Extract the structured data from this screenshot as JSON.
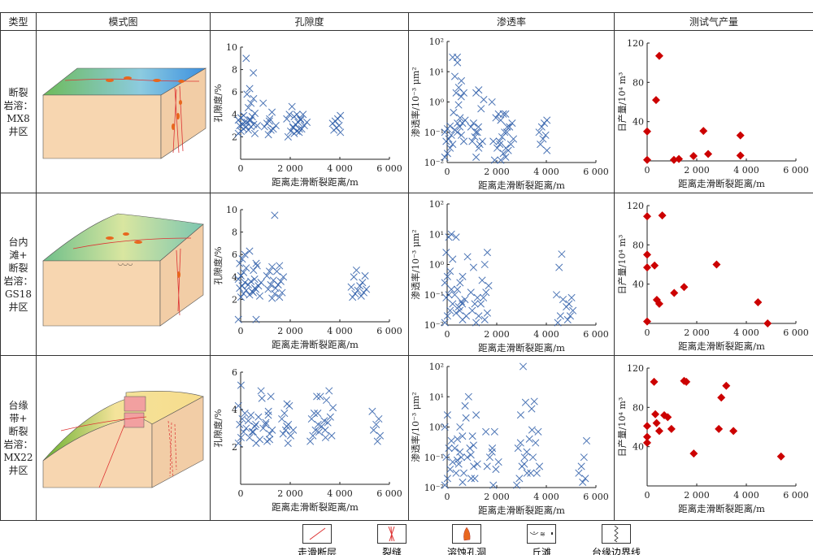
{
  "header": {
    "type": "类型",
    "model": "模式图",
    "porosity": "孔隙度",
    "permeability": "渗透率",
    "gas": "测试气产量"
  },
  "rows": [
    {
      "type_lines": [
        "断裂",
        "岩溶：",
        "MX8",
        "井区"
      ]
    },
    {
      "type_lines": [
        "台内",
        "滩+",
        "断裂",
        "岩溶：",
        "GS18",
        "井区"
      ]
    },
    {
      "type_lines": [
        "台缘",
        "带+",
        "断裂",
        "岩溶：",
        "MX22",
        "井区"
      ]
    }
  ],
  "legend": [
    {
      "label": "走滑断层",
      "icon": "strike-slip-fault-icon"
    },
    {
      "label": "裂缝",
      "icon": "fracture-icon"
    },
    {
      "label": "溶蚀孔洞",
      "icon": "dissolution-vug-icon"
    },
    {
      "label": "丘滩",
      "icon": "mound-shoal-icon"
    },
    {
      "label": "台缘边界线",
      "icon": "platform-margin-boundary-icon"
    }
  ],
  "colors": {
    "cross_marker": "#2b5ca8",
    "diamond_marker": "#cc0000",
    "block_face": "#f7d6b0"
  },
  "chart_data": [
    {
      "type": "scatter",
      "row": 0,
      "kind": "porosity",
      "xlabel": "距离走滑断裂距离/m",
      "ylabel": "孔隙度/%",
      "xlim": [
        0,
        6000
      ],
      "ylim": [
        0,
        10
      ],
      "xticks": [
        "0",
        "2 000",
        "4 000",
        "6 000"
      ],
      "yticks": [
        "2",
        "4",
        "6",
        "8",
        "10"
      ],
      "marker": "cross",
      "clusters": [
        {
          "x": 0,
          "y": [
            2.3,
            2.5,
            2.7,
            2.9,
            3.0,
            3.1,
            3.3,
            3.5,
            3.7,
            3.9,
            9.0
          ]
        },
        {
          "x": 350,
          "y": [
            2.3,
            2.6,
            2.9,
            3.1,
            3.3,
            3.5,
            3.8,
            4.1,
            4.6,
            5.0,
            5.4,
            5.8,
            6.3
          ]
        },
        {
          "x": 500,
          "y": [
            3.0,
            3.5,
            7.7
          ]
        },
        {
          "x": 1000,
          "y": [
            2.2,
            2.6,
            2.9,
            3.2,
            3.6,
            5.0
          ]
        },
        {
          "x": 1250,
          "y": [
            2.7,
            3.0,
            3.4,
            4.2
          ]
        },
        {
          "x": 1900,
          "y": [
            2.0,
            2.5,
            2.8,
            3.6,
            4.0,
            4.7
          ]
        },
        {
          "x": 2200,
          "y": [
            2.3,
            2.5,
            2.7,
            2.9,
            3.1,
            3.3,
            3.5,
            3.8,
            4.0
          ]
        },
        {
          "x": 2450,
          "y": [
            2.4,
            2.7,
            3.0,
            3.3,
            3.6,
            4.0
          ]
        },
        {
          "x": 3800,
          "y": [
            2.4,
            2.6,
            2.8,
            3.0,
            3.2,
            3.4,
            3.6,
            3.9
          ]
        }
      ]
    },
    {
      "type": "scatter",
      "row": 0,
      "kind": "permeability",
      "xlabel": "距离走滑断裂距离/m",
      "ylabel": "渗透率/10⁻³ μm²",
      "xlim": [
        0,
        6000
      ],
      "ylim": [
        0.01,
        100
      ],
      "yscale": "log",
      "xticks": [
        "0",
        "2 000",
        "4 000",
        "6 000"
      ],
      "yticks": [
        "10⁻²",
        "10⁻¹",
        "10⁰",
        "10¹",
        "10²"
      ],
      "marker": "cross",
      "clusters": [
        {
          "x": 0,
          "y": [
            0.015,
            0.02,
            0.03,
            0.04,
            0.05,
            0.06,
            0.08,
            0.1,
            0.13,
            0.16,
            30
          ]
        },
        {
          "x": 350,
          "y": [
            0.08,
            0.12,
            0.2,
            0.3,
            0.45,
            2,
            3,
            5,
            7,
            20
          ]
        },
        {
          "x": 500,
          "y": [
            0.05,
            0.1,
            0.15,
            0.2,
            0.25,
            0.8,
            1.5,
            2,
            30
          ]
        },
        {
          "x": 1050,
          "y": [
            0.015,
            0.03,
            0.05,
            0.07,
            0.1,
            0.15,
            0.2,
            2,
            2.5
          ]
        },
        {
          "x": 1250,
          "y": [
            0.04,
            0.05,
            0.1,
            0.15,
            0.6,
            1.2
          ]
        },
        {
          "x": 1900,
          "y": [
            0.012,
            0.03,
            0.04,
            0.05,
            0.3,
            0.4,
            1.0
          ]
        },
        {
          "x": 2200,
          "y": [
            0.012,
            0.02,
            0.03,
            0.05,
            0.07,
            0.1,
            0.15,
            0.25,
            0.4
          ]
        },
        {
          "x": 2450,
          "y": [
            0.015,
            0.025,
            0.04,
            0.06,
            0.1,
            0.15,
            0.2,
            0.4
          ]
        },
        {
          "x": 3800,
          "y": [
            0.025,
            0.04,
            0.06,
            0.08,
            0.1,
            0.15,
            0.2,
            0.25
          ]
        }
      ]
    },
    {
      "type": "scatter",
      "row": 0,
      "kind": "gas",
      "xlabel": "距离走滑断裂距离/m",
      "ylabel": "日产量/10⁴ m³",
      "xlim": [
        0,
        6000
      ],
      "ylim": [
        0,
        120
      ],
      "xticks": [
        "0",
        "2 000",
        "4 000",
        "6 000"
      ],
      "yticks": [
        "40",
        "80",
        "120"
      ],
      "marker": "diamond",
      "points": [
        [
          0,
          30
        ],
        [
          0,
          1
        ],
        [
          360,
          62
        ],
        [
          490,
          107
        ],
        [
          1080,
          1
        ],
        [
          1280,
          2
        ],
        [
          1870,
          5
        ],
        [
          2270,
          30.5
        ],
        [
          2460,
          7
        ],
        [
          3760,
          26
        ],
        [
          3760,
          5.5
        ]
      ]
    },
    {
      "type": "scatter",
      "row": 1,
      "kind": "porosity",
      "xlabel": "距离走滑断裂距离/m",
      "ylabel": "孔隙度/%",
      "xlim": [
        0,
        6000
      ],
      "ylim": [
        0,
        10
      ],
      "xticks": [
        "0",
        "2 000",
        "4 000",
        "6 000"
      ],
      "yticks": [
        "2",
        "4",
        "6",
        "8",
        "10"
      ],
      "marker": "cross",
      "clusters": [
        {
          "x": 0,
          "y": [
            0.2,
            2.2,
            2.5,
            2.8,
            3.0,
            3.2,
            3.5,
            3.8,
            4.1,
            4.4,
            4.8,
            5.2,
            5.6,
            6.0
          ]
        },
        {
          "x": 400,
          "y": [
            0.2,
            2.4,
            2.7,
            3.0,
            3.3,
            3.6,
            4.6,
            5.2,
            6.3
          ]
        },
        {
          "x": 600,
          "y": [
            2.3,
            2.6,
            2.9,
            3.2,
            3.5,
            3.8,
            5.0
          ]
        },
        {
          "x": 1150,
          "y": [
            2.1,
            2.5,
            2.9,
            3.3,
            3.7,
            4.1,
            4.5,
            4.9,
            9.5
          ]
        },
        {
          "x": 1500,
          "y": [
            2.2,
            2.6,
            3.0,
            3.3,
            3.6,
            4.0,
            4.5,
            5.0
          ]
        },
        {
          "x": 4500,
          "y": [
            2.2,
            2.5,
            2.8,
            3.1,
            4.0,
            4.6
          ]
        },
        {
          "x": 4900,
          "y": [
            2.3,
            2.6,
            2.9,
            3.2,
            3.5,
            4.1
          ]
        }
      ]
    },
    {
      "type": "scatter",
      "row": 1,
      "kind": "permeability",
      "xlabel": "距离走滑断裂距离/m",
      "ylabel": "渗透率/10⁻³ μm²",
      "xlim": [
        0,
        6000
      ],
      "ylim": [
        0.01,
        100
      ],
      "yscale": "log",
      "xticks": [
        "0",
        "2 000",
        "4 000",
        "6 000"
      ],
      "yticks": [
        "10⁻²",
        "10⁻¹",
        "10⁰",
        "10¹",
        "10²"
      ],
      "marker": "cross",
      "clusters": [
        {
          "x": 0,
          "y": [
            0.012,
            0.02,
            0.03,
            0.05,
            0.08,
            0.1,
            0.15,
            0.25,
            0.4,
            0.6,
            1.5,
            2.5,
            8,
            10
          ]
        },
        {
          "x": 400,
          "y": [
            0.015,
            0.025,
            0.04,
            0.06,
            0.1,
            0.15,
            0.25,
            0.4,
            8
          ]
        },
        {
          "x": 600,
          "y": [
            0.02,
            0.03,
            0.05,
            0.07,
            1.8
          ]
        },
        {
          "x": 1050,
          "y": [
            0.012,
            0.02,
            0.03,
            0.05,
            0.08,
            0.12,
            0.8
          ]
        },
        {
          "x": 1450,
          "y": [
            0.015,
            0.025,
            0.05,
            0.08,
            0.12,
            0.2,
            0.3,
            1.0,
            2.5
          ]
        },
        {
          "x": 4450,
          "y": [
            0.012,
            0.02,
            0.07,
            0.1,
            0.8,
            2.2
          ]
        },
        {
          "x": 4900,
          "y": [
            0.015,
            0.02,
            0.03,
            0.04,
            0.05,
            0.08
          ]
        }
      ]
    },
    {
      "type": "scatter",
      "row": 1,
      "kind": "gas",
      "xlabel": "距离走滑断裂距离/m",
      "ylabel": "日产量/10⁴ m³",
      "xlim": [
        0,
        6000
      ],
      "ylim": [
        0,
        120
      ],
      "xticks": [
        "0",
        "2 000",
        "4 000",
        "6 000"
      ],
      "yticks": [
        "40",
        "80",
        "120"
      ],
      "marker": "diamond",
      "points": [
        [
          0,
          109
        ],
        [
          610,
          110
        ],
        [
          0,
          70
        ],
        [
          0,
          57
        ],
        [
          300,
          59
        ],
        [
          0,
          2
        ],
        [
          390,
          24
        ],
        [
          490,
          20
        ],
        [
          1090,
          31
        ],
        [
          1490,
          37
        ],
        [
          2800,
          60
        ],
        [
          4470,
          21.5
        ],
        [
          4860,
          0
        ]
      ]
    },
    {
      "type": "scatter",
      "row": 2,
      "kind": "porosity",
      "xlabel": "距离走滑断裂距离/m",
      "ylabel": "孔隙度/%",
      "xlim": [
        0,
        6000
      ],
      "ylim": [
        0,
        6
      ],
      "xticks": [
        "0",
        "2 000",
        "4 000",
        "6 000"
      ],
      "yticks": [
        "2",
        "4",
        "6"
      ],
      "marker": "cross",
      "clusters": [
        {
          "x": 0,
          "y": [
            2.2,
            2.5,
            2.8,
            3.0,
            3.2,
            3.5,
            3.8,
            4.2,
            5.3
          ]
        },
        {
          "x": 400,
          "y": [
            2.2,
            2.5,
            2.8,
            3.1,
            3.4,
            3.7
          ]
        },
        {
          "x": 600,
          "y": [
            2.4,
            2.8,
            3.2,
            3.6,
            5.0
          ]
        },
        {
          "x": 950,
          "y": [
            2.3,
            2.7,
            3.0,
            3.3,
            3.9,
            4.6
          ]
        },
        {
          "x": 1100,
          "y": [
            2.4,
            2.9,
            3.2,
            3.7,
            4.7
          ]
        },
        {
          "x": 1700,
          "y": [
            2.7,
            2.9,
            3.2,
            3.5,
            3.8,
            4.3
          ]
        },
        {
          "x": 1950,
          "y": [
            2.2,
            2.6,
            2.9,
            3.1,
            4.2
          ]
        },
        {
          "x": 2900,
          "y": [
            2.3,
            2.6,
            2.9,
            3.2,
            3.5,
            3.8,
            4.7
          ]
        },
        {
          "x": 3200,
          "y": [
            2.5,
            2.8,
            3.1,
            3.4,
            3.8,
            4.7
          ]
        },
        {
          "x": 3500,
          "y": [
            2.6,
            2.9,
            3.3,
            3.6,
            4.1,
            4.5,
            5.0
          ]
        },
        {
          "x": 5400,
          "y": [
            2.3,
            2.6,
            2.9,
            3.2,
            3.5,
            3.9
          ]
        }
      ]
    },
    {
      "type": "scatter",
      "row": 2,
      "kind": "permeability",
      "xlabel": "距离走滑断裂距离/m",
      "ylabel": "渗透率/10⁻³ μm²",
      "xlim": [
        0,
        6000
      ],
      "ylim": [
        0.01,
        100
      ],
      "yscale": "log",
      "xticks": [
        "0",
        "2 000",
        "4 000",
        "6 000"
      ],
      "yticks": [
        "10⁻²",
        "10⁻¹",
        "10⁰",
        "10¹",
        "10²"
      ],
      "marker": "cross",
      "clusters": [
        {
          "x": 0,
          "y": [
            0.012,
            0.02,
            0.04,
            0.07,
            0.1,
            0.2,
            0.35,
            1,
            2.5
          ]
        },
        {
          "x": 400,
          "y": [
            0.015,
            0.03,
            0.06,
            0.1,
            0.2,
            0.4,
            1.0
          ]
        },
        {
          "x": 500,
          "y": [
            0.03,
            0.08,
            0.15,
            0.5,
            5
          ]
        },
        {
          "x": 850,
          "y": [
            0.02,
            0.05,
            0.1,
            0.2,
            0.5,
            2,
            10
          ]
        },
        {
          "x": 1050,
          "y": [
            0.02,
            0.06,
            0.12,
            0.25,
            2.5
          ]
        },
        {
          "x": 1600,
          "y": [
            0.05,
            0.1,
            0.2,
            0.7
          ]
        },
        {
          "x": 1900,
          "y": [
            0.012,
            0.04,
            0.07,
            0.15,
            0.7
          ]
        },
        {
          "x": 2900,
          "y": [
            0.012,
            0.02,
            0.05,
            0.1,
            0.2,
            2.5
          ]
        },
        {
          "x": 3000,
          "y": [
            0.03,
            0.3,
            100
          ]
        },
        {
          "x": 3200,
          "y": [
            0.03,
            0.06,
            0.15,
            0.4,
            0.8,
            6.5
          ]
        },
        {
          "x": 3500,
          "y": [
            0.03,
            0.05,
            0.1,
            0.3,
            0.7,
            4,
            7
          ]
        },
        {
          "x": 5400,
          "y": [
            0.015,
            0.02,
            0.03,
            0.05,
            0.1,
            0.35
          ]
        }
      ]
    },
    {
      "type": "scatter",
      "row": 2,
      "kind": "gas",
      "xlabel": "距离走滑断裂距离/m",
      "ylabel": "日产量/10⁴ m³",
      "xlim": [
        0,
        6000
      ],
      "ylim": [
        0,
        120
      ],
      "xticks": [
        "0",
        "2 000",
        "4 000",
        "6 000"
      ],
      "yticks": [
        "40",
        "80",
        "120"
      ],
      "marker": "diamond",
      "points": [
        [
          0,
          61
        ],
        [
          0,
          50
        ],
        [
          0,
          44
        ],
        [
          280,
          106
        ],
        [
          330,
          73
        ],
        [
          380,
          64
        ],
        [
          490,
          56
        ],
        [
          690,
          72
        ],
        [
          830,
          70
        ],
        [
          980,
          58
        ],
        [
          1490,
          107
        ],
        [
          1580,
          106
        ],
        [
          1880,
          33
        ],
        [
          2890,
          58
        ],
        [
          2990,
          90
        ],
        [
          3190,
          102
        ],
        [
          3480,
          56
        ],
        [
          5400,
          30
        ]
      ]
    }
  ]
}
